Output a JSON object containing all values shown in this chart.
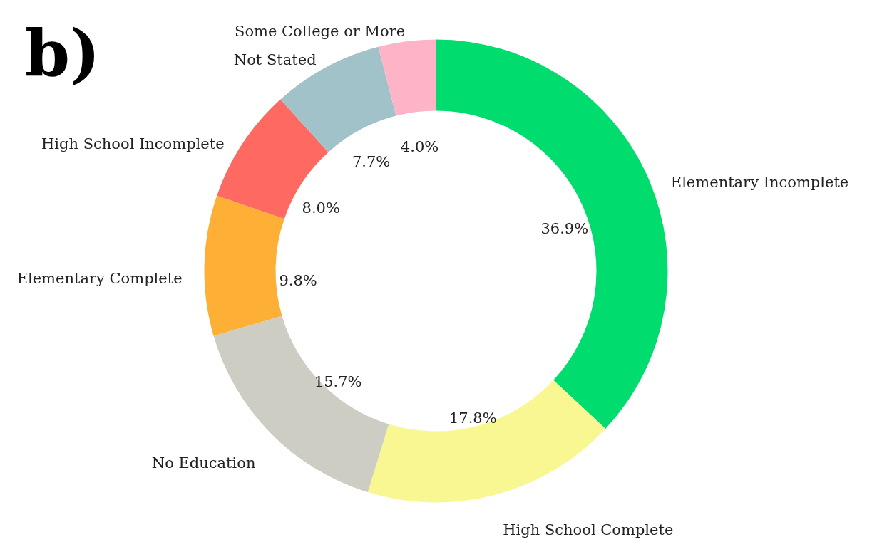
{
  "chart_data": {
    "type": "donut",
    "title": "b)",
    "categories": [
      "Elementary Incomplete",
      "High School Complete",
      "No Education",
      "Elementary Complete",
      "High School Incomplete",
      "Not Stated",
      "Some College or More"
    ],
    "values": [
      36.9,
      17.8,
      15.7,
      9.8,
      8.0,
      7.7,
      4.0
    ],
    "value_labels": [
      "36.9%",
      "17.8%",
      "15.7%",
      "9.8%",
      "8.0%",
      "7.7%",
      "4.0%"
    ],
    "colors": [
      "#00dd6e",
      "#f9f791",
      "#cdcdc4",
      "#fdb035",
      "#fe6961",
      "#a2c2c9",
      "#ffb3c6"
    ],
    "legend": false
  }
}
